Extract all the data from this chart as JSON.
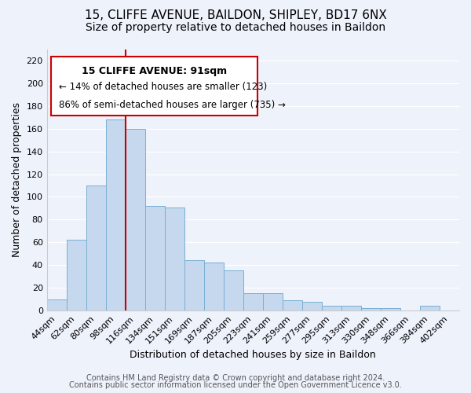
{
  "title_line1": "15, CLIFFE AVENUE, BAILDON, SHIPLEY, BD17 6NX",
  "title_line2": "Size of property relative to detached houses in Baildon",
  "xlabel": "Distribution of detached houses by size in Baildon",
  "ylabel": "Number of detached properties",
  "categories": [
    "44sqm",
    "62sqm",
    "80sqm",
    "98sqm",
    "116sqm",
    "134sqm",
    "151sqm",
    "169sqm",
    "187sqm",
    "205sqm",
    "223sqm",
    "241sqm",
    "259sqm",
    "277sqm",
    "295sqm",
    "313sqm",
    "330sqm",
    "348sqm",
    "366sqm",
    "384sqm",
    "402sqm"
  ],
  "values": [
    10,
    62,
    110,
    168,
    160,
    92,
    91,
    44,
    42,
    35,
    15,
    15,
    9,
    8,
    4,
    4,
    2,
    2,
    0,
    4,
    0
  ],
  "bar_color": "#c5d8ee",
  "bar_edge_color": "#7aafd4",
  "vline_x": 3.5,
  "vline_color": "#cc0000",
  "ylim": [
    0,
    230
  ],
  "yticks": [
    0,
    20,
    40,
    60,
    80,
    100,
    120,
    140,
    160,
    180,
    200,
    220
  ],
  "annotation_title": "15 CLIFFE AVENUE: 91sqm",
  "annotation_line2": "← 14% of detached houses are smaller (123)",
  "annotation_line3": "86% of semi-detached houses are larger (735) →",
  "footer_line1": "Contains HM Land Registry data © Crown copyright and database right 2024.",
  "footer_line2": "Contains public sector information licensed under the Open Government Licence v3.0.",
  "background_color": "#eef2fb",
  "grid_color": "#ffffff",
  "title_fontsize": 11,
  "subtitle_fontsize": 10,
  "axis_label_fontsize": 9,
  "tick_fontsize": 8,
  "annotation_fontsize": 9,
  "footer_fontsize": 7
}
